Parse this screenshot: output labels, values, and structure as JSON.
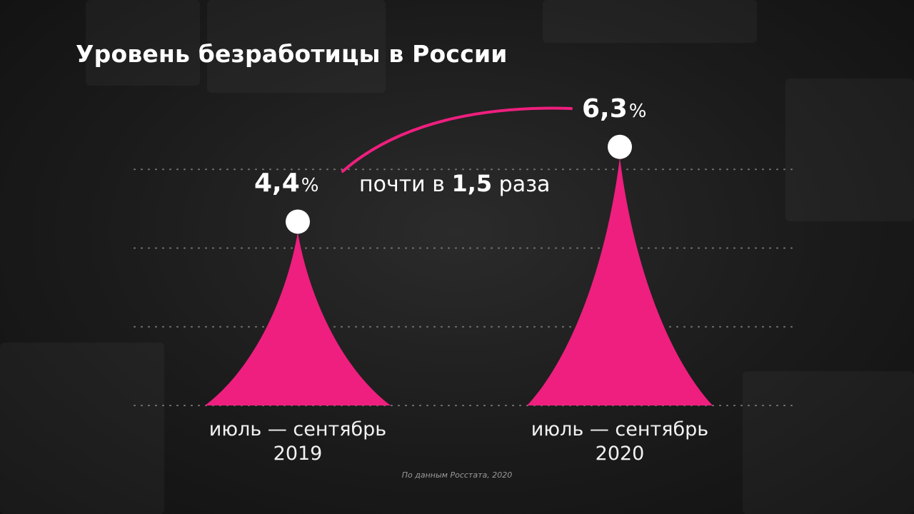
{
  "title": "Уровень безработицы в России",
  "source": "По данным Росстата, 2020",
  "comparison": {
    "pre": "почти в",
    "factor": "1,5",
    "post": "раза"
  },
  "colors": {
    "accent": "#ee1f7e",
    "marker": "#ffffff",
    "grid": "#777777"
  },
  "chart_data": {
    "type": "bar",
    "categories": [
      "июль — сентябрь 2019",
      "июль — сентябрь 2020"
    ],
    "category_lines": [
      [
        "июль — сентябрь",
        "2019"
      ],
      [
        "июль — сентябрь",
        "2020"
      ]
    ],
    "values": [
      4.4,
      6.3
    ],
    "value_labels": [
      "4,4",
      "6,3"
    ],
    "unit": "%",
    "ylim": [
      0,
      8
    ],
    "grid": true
  }
}
